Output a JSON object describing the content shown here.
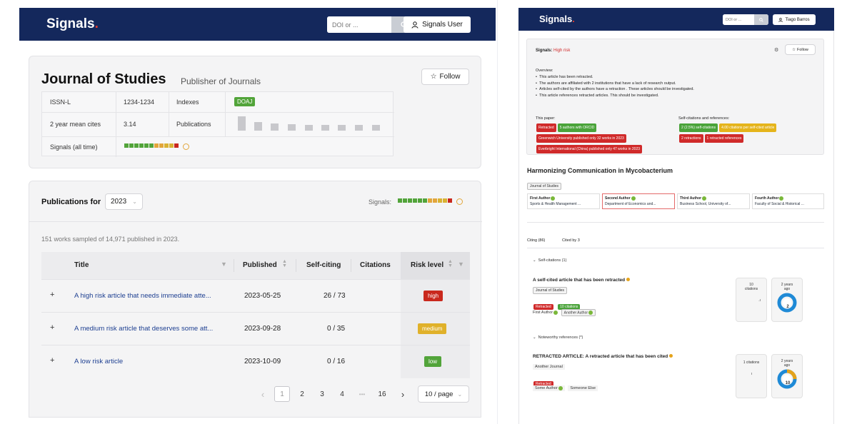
{
  "left": {
    "nav": {
      "brand": "Signals",
      "brand_dot": ".",
      "search_placeholder": "DOI or ...",
      "user_label": "Signals User"
    },
    "journal": {
      "title": "Journal of Studies",
      "publisher": "Publisher of Journals",
      "follow_label": "Follow",
      "issn_label": "ISSN-L",
      "issn_value": "1234-1234",
      "indexes_label": "Indexes",
      "index_tag": "DOAJ",
      "cites_label": "2 year mean cites",
      "cites_value": "3.14",
      "publications_label": "Publications",
      "signals_label": "Signals (all time)"
    },
    "pubs": {
      "heading": "Publications for",
      "year": "2023",
      "signals_label": "Signals:",
      "sampled_text": "151 works sampled of 14,971 published in 2023.",
      "columns": {
        "title": "Title",
        "published": "Published",
        "self_citing": "Self-citing",
        "citations": "Citations",
        "risk": "Risk level"
      },
      "rows": [
        {
          "expand": "+",
          "title": "A high risk article that needs immediate atte...",
          "published": "2023-05-25",
          "self_citing": "26 / 73",
          "citations": "",
          "risk": "high",
          "risk_color": "#c9281d"
        },
        {
          "expand": "+",
          "title": "A medium risk article that deserves some att...",
          "published": "2023-09-28",
          "self_citing": "0 / 35",
          "citations": "",
          "risk": "medium",
          "risk_color": "#e0b12a"
        },
        {
          "expand": "+",
          "title": "A low risk article",
          "published": "2023-10-09",
          "self_citing": "0 / 16",
          "citations": "",
          "risk": "low",
          "risk_color": "#52a43a"
        }
      ],
      "pagination": {
        "prev": "‹",
        "pages": [
          "1",
          "2",
          "3",
          "4",
          "•••",
          "16"
        ],
        "next": "›",
        "per_page": "10 / page"
      }
    }
  },
  "right": {
    "nav": {
      "brand": "Signals",
      "brand_dot": ".",
      "search_placeholder": "DOI or ...",
      "user_label": "Tiago Barros"
    },
    "signals_box": {
      "label": "Signals:",
      "risk": "High risk",
      "follow_label": "Follow",
      "overview_title": "Overview:",
      "overview_items": [
        "This article has been retracted.",
        "The authors are affiliated with 2 institutions that have a lack of research output.",
        "Articles self-cited by the authors have a retraction . These articles should be investigated.",
        "This article references retracted articles. This should be investigated."
      ],
      "this_paper_label": "This paper:",
      "this_paper_tags": [
        {
          "text": "Retracted",
          "color": "#d02a2a"
        },
        {
          "text": "5 authors with ORCID",
          "color": "#4aa33a"
        },
        {
          "text": "Greenwich University published only 32 works in 2023",
          "color": "#d02a2a"
        },
        {
          "text": "Everbright International (China) published only 47 works in 2023",
          "color": "#d02a2a"
        }
      ],
      "selfcite_label": "Self-citations and references:",
      "selfcite_tags": [
        {
          "text": "2 (2.5%) self-citations",
          "color": "#4aa33a"
        },
        {
          "text": "4.00 citations per self-cited article",
          "color": "#e5b41b"
        },
        {
          "text": "2 retractions",
          "color": "#d02a2a"
        },
        {
          "text": "1 retracted references",
          "color": "#d02a2a"
        }
      ]
    },
    "article": {
      "title": "Harmonizing Communication in Mycobacterium",
      "journal_chip": "Journal of Studies",
      "authors": [
        {
          "name": "First Author",
          "affil": "Sports & Health Management ..."
        },
        {
          "name": "Second Author",
          "affil": "Department of Economics and..."
        },
        {
          "name": "Third Author",
          "affil": "Business School, University of..."
        },
        {
          "name": "Fourth Author",
          "affil": "Faculty of Social & Historical ..."
        }
      ],
      "tabs": {
        "citing": "Citing (86)",
        "cited_by": "Cited by 3"
      },
      "selfcitations_header": "Self-citations (1)",
      "selfcite_item": {
        "title": "A self-cited article that has been retracted",
        "journal": "Journal of Studies",
        "tags": [
          {
            "text": "Retracted",
            "color": "#d02a2a"
          },
          {
            "text": "10 citations",
            "color": "#4aa33a"
          }
        ],
        "authors": [
          "First Author",
          "Another Author"
        ],
        "citations_count": "10",
        "citations_label": "citations",
        "age_line1": "2 years",
        "age_line2": "ago",
        "donut_value": "2",
        "donut_color": "#1f8ad6"
      },
      "noteworthy_header": "Noteworthy references (*)",
      "retracted_item": {
        "title": "RETRACTED ARTICLE: A retracted article that has been cited",
        "journal": "Another Journal",
        "tags": [
          {
            "text": "Retracted",
            "color": "#d02a2a"
          }
        ],
        "authors": [
          "Some Author",
          "Someone Else"
        ],
        "citations_text": "1 citations",
        "age_line1": "2 years",
        "age_line2": "ago",
        "donut_value": "10",
        "donut_color": "#1f8ad6",
        "donut_accent": "#e5a31b"
      }
    }
  }
}
